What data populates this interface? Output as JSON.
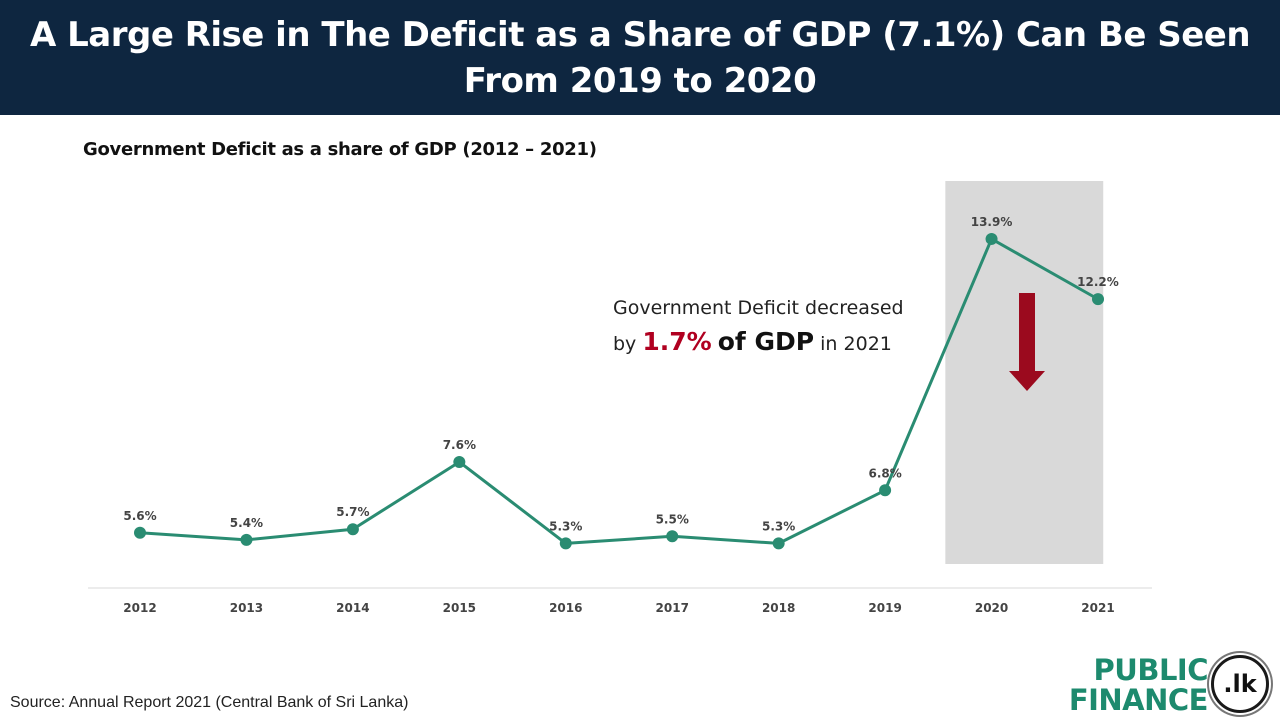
{
  "header": {
    "title": "A Large Rise in The Deficit as a Share of GDP (7.1%) Can Be Seen From 2019 to 2020"
  },
  "annotation": {
    "line1": "Government Deficit decreased",
    "by": "by",
    "value": "1.7%",
    "of_gdp": "of GDP",
    "suffix": "in 2021"
  },
  "source": "Source: Annual Report 2021 (Central Bank of Sri Lanka)",
  "logo": {
    "line1": "PUBLIC",
    "line2": "FINANCE",
    "badge": ".lk"
  },
  "colors": {
    "header_bg": "#0e2640",
    "line": "#2a8c72",
    "highlight": "#d9d9d9",
    "arrow": "#9b0a1e",
    "accent_red": "#b00020"
  },
  "chart_data": {
    "type": "line",
    "title": "Government Deficit as a share of GDP (2012 – 2021)",
    "categories": [
      "2012",
      "2013",
      "2014",
      "2015",
      "2016",
      "2017",
      "2018",
      "2019",
      "2020",
      "2021"
    ],
    "values": [
      5.6,
      5.4,
      5.7,
      7.6,
      5.3,
      5.5,
      5.3,
      6.8,
      13.9,
      12.2
    ],
    "labels": [
      "5.6%",
      "5.4%",
      "5.7%",
      "7.6%",
      "5.3%",
      "5.5%",
      "5.3%",
      "6.8%",
      "13.9%",
      "12.2%"
    ],
    "highlight_categories": [
      "2020",
      "2021"
    ],
    "grid": false,
    "xlabel": "",
    "ylabel": ""
  }
}
